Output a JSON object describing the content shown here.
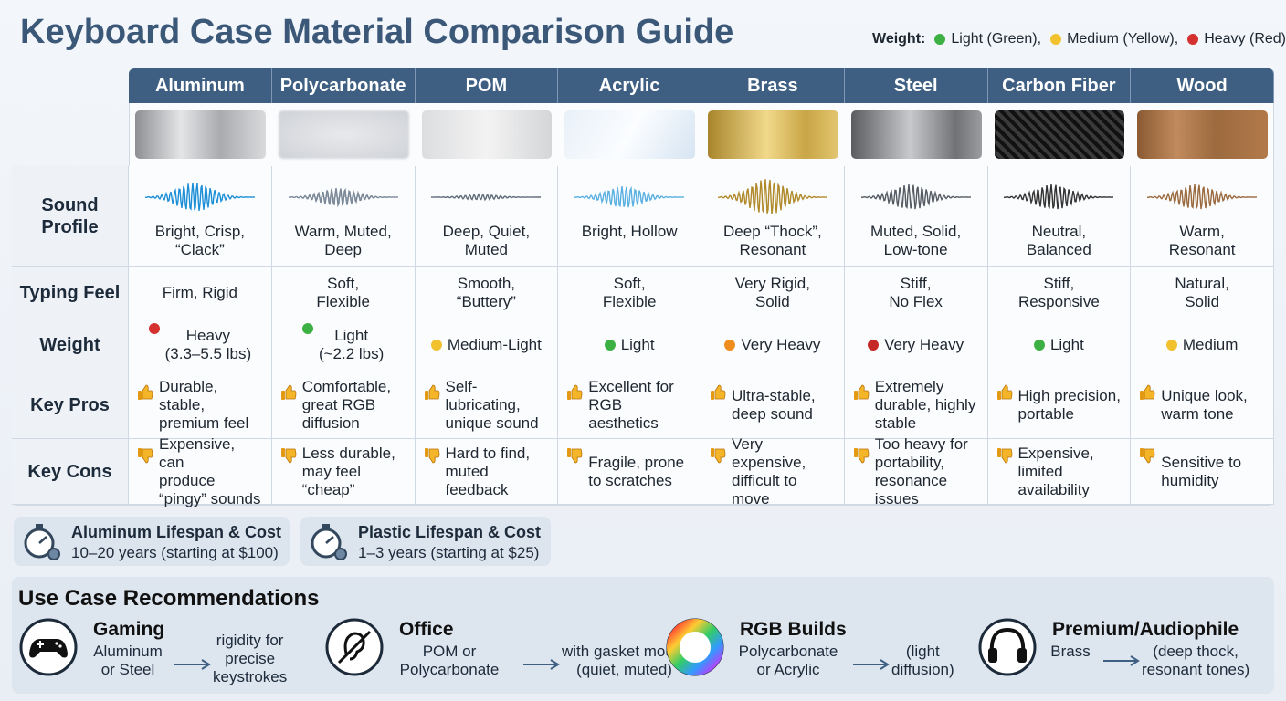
{
  "header": {
    "title": "Keyboard Case Material Comparison Guide"
  },
  "legend": {
    "label": "Weight:",
    "items": [
      {
        "text": "Light (Green),",
        "color": "#3cb043"
      },
      {
        "text": "Medium (Yellow),",
        "color": "#f2c12e"
      },
      {
        "text": "Heavy (Red)",
        "color": "#d3302f"
      }
    ]
  },
  "table": {
    "columns": [
      "Aluminum",
      "Polycarbonate",
      "POM",
      "Acrylic",
      "Brass",
      "Steel",
      "Carbon Fiber",
      "Wood"
    ],
    "rows": [
      {
        "label": "Sound\nProfile",
        "cells": [
          "Bright, Crisp,\n“Clack”",
          "Warm, Muted,\nDeep",
          "Deep, Quiet,\nMuted",
          "Bright, Hollow",
          "Deep “Thock”,\nResonant",
          "Muted, Solid,\nLow-tone",
          "Neutral,\nBalanced",
          "Warm,\nResonant"
        ]
      },
      {
        "label": "Typing Feel",
        "cells": [
          "Firm, Rigid",
          "Soft,\nFlexible",
          "Smooth,\n“Buttery”",
          "Soft,\nFlexible",
          "Very Rigid,\nSolid",
          "Stiff,\nNo Flex",
          "Stiff,\nResponsive",
          "Natural,\nSolid"
        ]
      },
      {
        "label": "Weight",
        "cells": [
          {
            "text": "Heavy\n(3.3–5.5 lbs)",
            "color": "#d3302f"
          },
          {
            "text": "Light\n(~2.2 lbs)",
            "color": "#3cb043"
          },
          {
            "text": "Medium-Light",
            "color": "#f2c12e"
          },
          {
            "text": "Light",
            "color": "#3cb043"
          },
          {
            "text": "Very Heavy",
            "color": "#ef8c1e"
          },
          {
            "text": "Very Heavy",
            "color": "#c62828"
          },
          {
            "text": "Light",
            "color": "#3cb043"
          },
          {
            "text": "Medium",
            "color": "#f2c12e"
          }
        ]
      },
      {
        "label": "Key Pros",
        "cells": [
          "Durable, stable,\npremium feel",
          "Comfortable,\ngreat RGB\ndiffusion",
          "Self-lubricating,\nunique sound",
          "Excellent for\nRGB aesthetics",
          "Ultra-stable,\ndeep sound",
          "Extremely\ndurable, highly\nstable",
          "High precision,\nportable",
          "Unique look,\nwarm tone"
        ]
      },
      {
        "label": "Key Cons",
        "cells": [
          "Expensive, can\nproduce\n“pingy” sounds",
          "Less durable,\nmay feel\n“cheap”",
          "Hard to find,\nmuted\nfeedback",
          "Fragile, prone\nto scratches",
          "Very expensive,\ndifficult to\nmove",
          "Too heavy for\nportability,\nresonance issues",
          "Expensive,\nlimited\navailability",
          "Sensitive to\nhumidity"
        ]
      }
    ]
  },
  "cards": [
    {
      "title": "Aluminum Lifespan & Cost",
      "text": "10–20 years (starting at $100)"
    },
    {
      "title": "Plastic Lifespan & Cost",
      "text": "1–3 years (starting at $25)"
    }
  ],
  "use_cases": {
    "title": "Use Case Recommendations",
    "items": [
      {
        "name": "Gaming",
        "material": "Aluminum\nor Steel",
        "result": "rigidity for\nprecise\nkeystrokes"
      },
      {
        "name": "Office",
        "material": "POM or\nPolycarbonate",
        "result": "with gasket mount\n(quiet, muted)"
      },
      {
        "name": "RGB Builds",
        "material": "Polycarbonate\nor Acrylic",
        "result": "(light\ndiffusion)"
      },
      {
        "name": "Premium/Audiophile",
        "material": "Brass",
        "result": "(deep thock,\nresonant tones)"
      }
    ]
  }
}
